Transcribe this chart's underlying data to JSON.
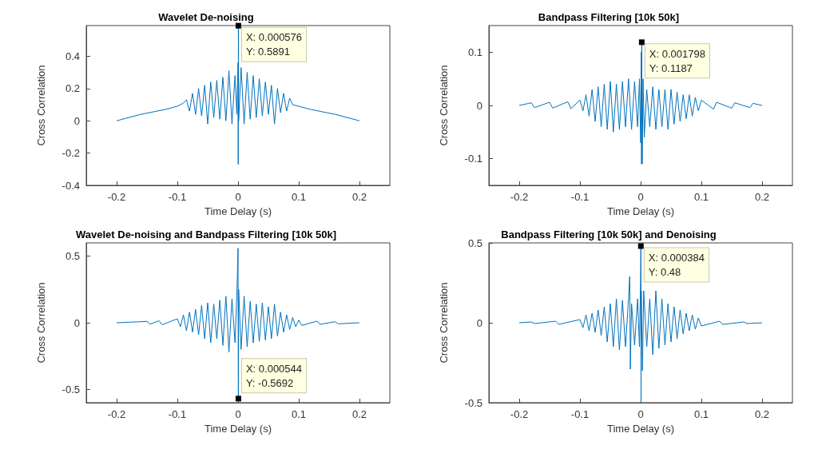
{
  "chart_data": [
    {
      "type": "line",
      "title": "Wavelet De-noising",
      "xlabel": "Time Delay (s)",
      "ylabel": "Cross Correlation",
      "xlim": [
        -0.25,
        0.25
      ],
      "xticks": [
        -0.2,
        -0.1,
        0,
        0.1,
        0.2
      ],
      "ylim": [
        -0.4,
        0.59
      ],
      "yticks": [
        -0.4,
        -0.2,
        0,
        0.2,
        0.4
      ],
      "annotations": [
        {
          "text": "X: 0.000576\nY: 0.5891",
          "x": 0.000576,
          "y": 0.5891
        }
      ],
      "series": [
        {
          "color": "#0072bd",
          "x": [
            -0.2,
            -0.16,
            -0.12,
            -0.1,
            -0.09,
            -0.085,
            -0.08,
            -0.075,
            -0.07,
            -0.065,
            -0.06,
            -0.055,
            -0.05,
            -0.045,
            -0.04,
            -0.035,
            -0.03,
            -0.025,
            -0.02,
            -0.015,
            -0.01,
            -0.005,
            -0.002,
            0,
            0.0003,
            0.000576,
            0.001,
            0.005,
            0.01,
            0.015,
            0.02,
            0.025,
            0.03,
            0.035,
            0.04,
            0.045,
            0.05,
            0.055,
            0.06,
            0.065,
            0.07,
            0.075,
            0.08,
            0.085,
            0.09,
            0.1,
            0.12,
            0.16,
            0.2
          ],
          "values": [
            0,
            0.04,
            0.07,
            0.09,
            0.11,
            0.13,
            0.06,
            0.17,
            0.04,
            0.2,
            0.03,
            0.22,
            -0.02,
            0.24,
            0.02,
            0.25,
            0.01,
            0.27,
            0,
            0.31,
            -0.02,
            0.28,
            0.04,
            0.36,
            -0.27,
            0.5891,
            0,
            0.33,
            -0.02,
            0.3,
            0.01,
            0.28,
            0.02,
            0.26,
            0.03,
            0.24,
            0.04,
            0.22,
            -0.02,
            0.2,
            0.05,
            0.17,
            0.06,
            0.14,
            0.1,
            0.09,
            0.07,
            0.04,
            0
          ]
        }
      ]
    },
    {
      "type": "line",
      "title": "Bandpass Filtering [10k 50k]",
      "xlabel": "Time Delay (s)",
      "ylabel": "Cross Correlation",
      "xlim": [
        -0.25,
        0.25
      ],
      "xticks": [
        -0.2,
        -0.1,
        0,
        0.1,
        0.2
      ],
      "ylim": [
        -0.15,
        0.15
      ],
      "yticks": [
        -0.1,
        0,
        0.1
      ],
      "annotations": [
        {
          "text": "X: 0.001798\nY: 0.1187",
          "x": 0.001798,
          "y": 0.1187
        }
      ],
      "series": [
        {
          "color": "#0072bd",
          "x": [
            -0.2,
            -0.18,
            -0.175,
            -0.15,
            -0.145,
            -0.12,
            -0.115,
            -0.1,
            -0.095,
            -0.09,
            -0.085,
            -0.08,
            -0.075,
            -0.07,
            -0.065,
            -0.06,
            -0.055,
            -0.05,
            -0.045,
            -0.04,
            -0.035,
            -0.03,
            -0.025,
            -0.02,
            -0.015,
            -0.01,
            -0.005,
            -0.002,
            0,
            0.001,
            0.0015,
            0.001798,
            0.0025,
            0.004,
            0.006,
            0.01,
            0.015,
            0.02,
            0.025,
            0.03,
            0.035,
            0.04,
            0.045,
            0.05,
            0.055,
            0.06,
            0.065,
            0.07,
            0.075,
            0.08,
            0.085,
            0.09,
            0.095,
            0.1,
            0.12,
            0.125,
            0.15,
            0.155,
            0.18,
            0.185,
            0.2
          ],
          "values": [
            0,
            0.005,
            -0.004,
            0.006,
            -0.005,
            0.007,
            -0.006,
            0.01,
            -0.01,
            0.02,
            -0.02,
            0.03,
            -0.03,
            0.035,
            -0.04,
            0.04,
            -0.045,
            0.045,
            -0.05,
            0.04,
            -0.045,
            0.045,
            -0.04,
            0.05,
            -0.045,
            0.045,
            -0.04,
            0.05,
            -0.07,
            0.1,
            -0.11,
            0.1187,
            -0.11,
            0.05,
            -0.06,
            0.03,
            -0.04,
            0.035,
            -0.045,
            0.03,
            -0.04,
            0.03,
            -0.045,
            0.03,
            -0.035,
            0.025,
            -0.03,
            0.02,
            -0.025,
            0.02,
            -0.02,
            0.015,
            -0.01,
            0.01,
            -0.007,
            0.006,
            -0.005,
            0.005,
            -0.004,
            0.004,
            0
          ]
        }
      ]
    },
    {
      "type": "line",
      "title": "Wavelet De-noising and Bandpass Filtering [10k 50k]",
      "xlabel": "Time Delay (s)",
      "ylabel": "Cross Correlation",
      "xlim": [
        -0.25,
        0.25
      ],
      "xticks": [
        -0.2,
        -0.1,
        0,
        0.1,
        0.2
      ],
      "ylim": [
        -0.6,
        0.6
      ],
      "yticks": [
        -0.5,
        0,
        0.5
      ],
      "annotations": [
        {
          "text": "X: 0.000544\nY: -0.5692",
          "x": 0.000544,
          "y": -0.5692
        }
      ],
      "series": [
        {
          "color": "#0072bd",
          "x": [
            -0.2,
            -0.15,
            -0.145,
            -0.13,
            -0.125,
            -0.1,
            -0.095,
            -0.09,
            -0.085,
            -0.08,
            -0.075,
            -0.07,
            -0.065,
            -0.06,
            -0.055,
            -0.05,
            -0.045,
            -0.04,
            -0.035,
            -0.03,
            -0.025,
            -0.02,
            -0.015,
            -0.01,
            -0.005,
            -0.002,
            0,
            0.0003,
            0.000544,
            0.001,
            0.005,
            0.01,
            0.015,
            0.02,
            0.025,
            0.03,
            0.035,
            0.04,
            0.045,
            0.05,
            0.055,
            0.06,
            0.065,
            0.07,
            0.075,
            0.08,
            0.085,
            0.09,
            0.095,
            0.1,
            0.105,
            0.13,
            0.135,
            0.16,
            0.165,
            0.2
          ],
          "values": [
            0,
            0.01,
            -0.01,
            0.015,
            -0.015,
            0.03,
            -0.03,
            0.06,
            -0.06,
            0.08,
            -0.07,
            0.1,
            -0.09,
            0.13,
            -0.12,
            0.15,
            -0.15,
            0.14,
            -0.12,
            0.17,
            -0.17,
            0.2,
            -0.22,
            0.18,
            -0.15,
            0.2,
            0.56,
            -0.3,
            -0.5692,
            0.25,
            -0.2,
            0.2,
            -0.18,
            0.16,
            -0.15,
            0.14,
            -0.14,
            0.15,
            -0.13,
            0.12,
            -0.12,
            0.14,
            -0.1,
            0.08,
            -0.07,
            0.06,
            -0.05,
            0.04,
            -0.03,
            0.02,
            -0.02,
            0.012,
            -0.012,
            0.008,
            -0.008,
            0
          ]
        }
      ]
    },
    {
      "type": "line",
      "title": "Bandpass Filtering [10k 50k] and Denoising",
      "xlabel": "Time Delay (s)",
      "ylabel": "Cross Correlation",
      "xlim": [
        -0.25,
        0.25
      ],
      "xticks": [
        -0.2,
        -0.1,
        0,
        0.1,
        0.2
      ],
      "ylim": [
        -0.5,
        0.5
      ],
      "yticks": [
        -0.5,
        0,
        0.5
      ],
      "annotations": [
        {
          "text": "X: 0.000384\nY: 0.48",
          "x": 0.000384,
          "y": 0.48
        }
      ],
      "series": [
        {
          "color": "#0072bd",
          "x": [
            -0.2,
            -0.18,
            -0.175,
            -0.14,
            -0.135,
            -0.1,
            -0.095,
            -0.09,
            -0.085,
            -0.08,
            -0.075,
            -0.07,
            -0.065,
            -0.06,
            -0.055,
            -0.05,
            -0.045,
            -0.04,
            -0.035,
            -0.03,
            -0.025,
            -0.02,
            -0.018,
            -0.017,
            -0.015,
            -0.01,
            -0.005,
            -0.002,
            0,
            0.000384,
            0.0006,
            0.001,
            0.003,
            0.005,
            0.01,
            0.015,
            0.02,
            0.025,
            0.03,
            0.035,
            0.04,
            0.045,
            0.05,
            0.055,
            0.06,
            0.065,
            0.07,
            0.075,
            0.08,
            0.085,
            0.09,
            0.095,
            0.1,
            0.13,
            0.135,
            0.17,
            0.175,
            0.2
          ],
          "values": [
            0,
            0.005,
            -0.005,
            0.01,
            -0.01,
            0.02,
            -0.03,
            0.05,
            -0.05,
            0.06,
            -0.06,
            0.08,
            -0.08,
            0.1,
            -0.12,
            0.12,
            -0.15,
            0.15,
            -0.17,
            0.14,
            -0.15,
            0.15,
            0.29,
            -0.29,
            0.12,
            -0.14,
            0.15,
            -0.15,
            0.3,
            0.48,
            -0.5,
            0.2,
            -0.3,
            0.2,
            -0.15,
            0.15,
            -0.2,
            0.2,
            -0.16,
            0.15,
            -0.14,
            0.12,
            -0.12,
            0.1,
            -0.1,
            0.08,
            -0.07,
            0.06,
            -0.05,
            0.05,
            -0.04,
            0.03,
            -0.02,
            0.01,
            -0.01,
            0.005,
            -0.005,
            0
          ]
        }
      ]
    }
  ]
}
